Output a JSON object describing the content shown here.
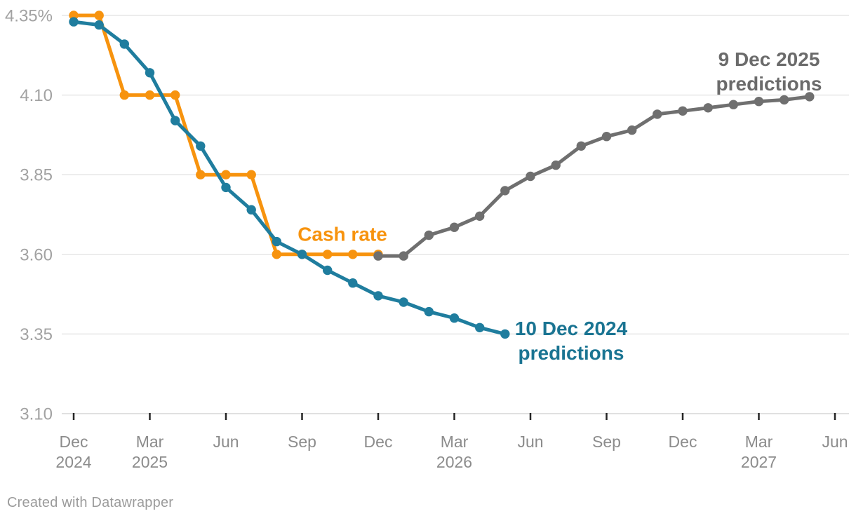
{
  "chart_data": {
    "type": "line",
    "unit": "%",
    "x_frequency": "monthly",
    "x_index_0": "Dec 2024",
    "x_ticks": [
      {
        "index": 0,
        "month": "Dec",
        "year": "2024"
      },
      {
        "index": 3,
        "month": "Mar",
        "year": "2025"
      },
      {
        "index": 6,
        "month": "Jun"
      },
      {
        "index": 9,
        "month": "Sep"
      },
      {
        "index": 12,
        "month": "Dec"
      },
      {
        "index": 15,
        "month": "Mar",
        "year": "2026"
      },
      {
        "index": 18,
        "month": "Jun"
      },
      {
        "index": 21,
        "month": "Sep"
      },
      {
        "index": 24,
        "month": "Dec"
      },
      {
        "index": 27,
        "month": "Mar",
        "year": "2027"
      },
      {
        "index": 30,
        "month": "Jun"
      }
    ],
    "y_axis": {
      "range": [
        3.1,
        4.35
      ],
      "grid": true,
      "ticks": [
        {
          "value": 4.35,
          "label": "4.35%"
        },
        {
          "value": 4.1,
          "label": "4.10"
        },
        {
          "value": 3.85,
          "label": "3.85"
        },
        {
          "value": 3.6,
          "label": "3.60"
        },
        {
          "value": 3.35,
          "label": "3.35"
        },
        {
          "value": 3.1,
          "label": "3.10"
        }
      ]
    },
    "series": [
      {
        "id": "cash-rate",
        "name": "Cash rate",
        "color": "#F7930E",
        "start_index": 0,
        "values": [
          4.35,
          4.35,
          4.1,
          4.1,
          4.1,
          3.85,
          3.85,
          3.85,
          3.6,
          3.6,
          3.6,
          3.6,
          3.6
        ]
      },
      {
        "id": "dec2024-predictions",
        "name": "10 Dec 2024 predictions",
        "color": "#1F7D9E",
        "start_index": 0,
        "values": [
          4.33,
          4.32,
          4.26,
          4.17,
          4.02,
          3.94,
          3.81,
          3.74,
          3.64,
          3.6,
          3.55,
          3.51,
          3.47,
          3.45,
          3.42,
          3.4,
          3.37,
          3.35
        ]
      },
      {
        "id": "dec2025-predictions",
        "name": "9 Dec 2025 predictions",
        "color": "#6F6F6F",
        "start_index": 12,
        "values": [
          3.595,
          3.595,
          3.66,
          3.685,
          3.72,
          3.8,
          3.845,
          3.88,
          3.94,
          3.97,
          3.99,
          4.04,
          4.05,
          4.06,
          4.07,
          4.08,
          4.085,
          4.095
        ]
      }
    ],
    "annotations": [
      {
        "id": "cash-rate-label",
        "lines": [
          "Cash rate"
        ],
        "color": "#F7930E"
      },
      {
        "id": "dec2024-label",
        "lines": [
          "10 Dec 2024",
          "predictions"
        ],
        "color": "#1A7492"
      },
      {
        "id": "dec2025-label",
        "lines": [
          "9 Dec 2025",
          "predictions"
        ],
        "color": "#6B6B6B"
      }
    ],
    "legend": "direct-labels",
    "styles": {
      "gridline_color": "#E6E6E6",
      "baseline_color": "#D6D6D6",
      "tick_mark_color": "#262626",
      "y_label_color": "#A2A2A2",
      "x_label_color": "#8C8C8C"
    }
  },
  "footer": {
    "attribution": "Created with Datawrapper"
  }
}
